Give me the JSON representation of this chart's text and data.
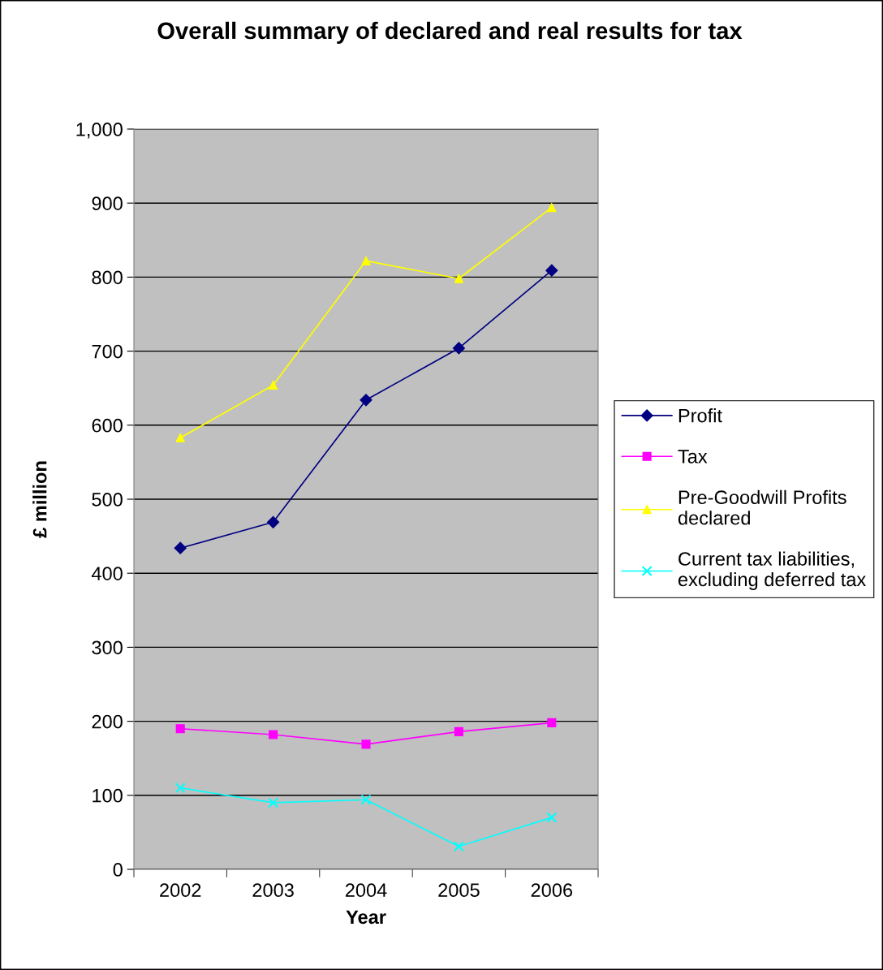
{
  "chart_data": {
    "type": "line",
    "title": "Overall summary of declared and real results for tax",
    "xlabel": "Year",
    "ylabel": "£ million",
    "categories": [
      "2002",
      "2003",
      "2004",
      "2005",
      "2006"
    ],
    "series": [
      {
        "name": "Profit",
        "color": "#000080",
        "marker": "diamond",
        "values": [
          434,
          469,
          634,
          704,
          809
        ]
      },
      {
        "name": "Tax",
        "color": "#ff00ff",
        "marker": "square",
        "values": [
          190,
          182,
          169,
          186,
          198
        ]
      },
      {
        "name": "Pre-Goodwill Profits\ndeclared",
        "color": "#ffff00",
        "marker": "triangle",
        "values": [
          583,
          654,
          822,
          798,
          894
        ]
      },
      {
        "name": "Current tax liabilities,\nexcluding deferred tax",
        "color": "#00ffff",
        "marker": "cross",
        "values": [
          110,
          90,
          94,
          31,
          70
        ]
      }
    ],
    "ylim": [
      0,
      1000
    ],
    "yticks": [
      0,
      100,
      200,
      300,
      400,
      500,
      600,
      700,
      800,
      900,
      {
        "value": 1000,
        "label": "1,000"
      }
    ],
    "grid": "y",
    "legend": "right",
    "line_style": "solid"
  }
}
